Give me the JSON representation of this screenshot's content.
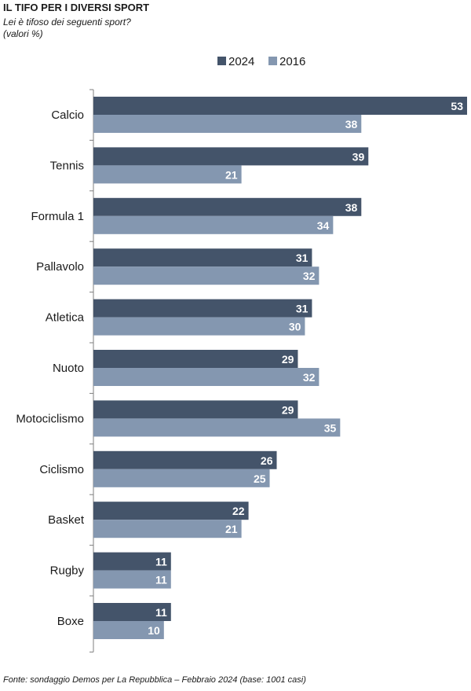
{
  "title": "IL TIFO PER I DIVERSI SPORT",
  "subtitle_line1": "Lei è tifoso dei seguenti sport?",
  "subtitle_line2": "(valori %)",
  "source": "Fonte: sondaggio Demos per La Repubblica – Febbraio 2024 (base: 1001 casi)",
  "chart_data": {
    "type": "bar",
    "orientation": "horizontal",
    "categories": [
      "Calcio",
      "Tennis",
      "Formula 1",
      "Pallavolo",
      "Atletica",
      "Nuoto",
      "Motociclismo",
      "Ciclismo",
      "Basket",
      "Rugby",
      "Boxe"
    ],
    "series": [
      {
        "name": "2024",
        "color": "#44546a",
        "values": [
          53,
          39,
          38,
          31,
          31,
          29,
          29,
          26,
          22,
          11,
          11
        ]
      },
      {
        "name": "2016",
        "color": "#8497b0",
        "values": [
          38,
          21,
          34,
          32,
          30,
          32,
          35,
          25,
          21,
          11,
          10
        ]
      }
    ],
    "xlim": [
      0,
      53
    ],
    "legend": "top",
    "grid": false
  }
}
